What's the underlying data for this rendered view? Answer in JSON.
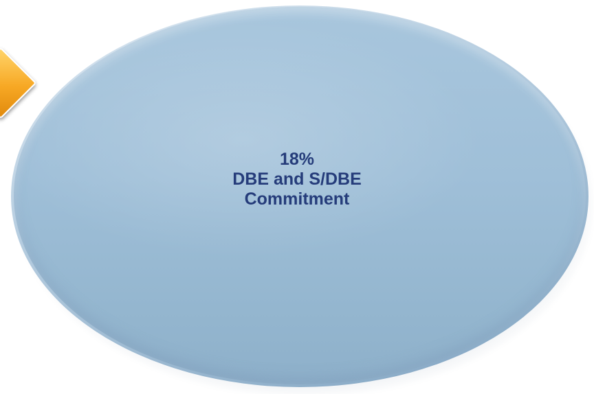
{
  "diagram": {
    "percentage": "18%",
    "line2": "DBE and S/DBE",
    "line3": "Commitment"
  },
  "colors": {
    "oval_fill": "#9fbfd8",
    "oval_rim": "#dfeaf3",
    "text": "#253c7a",
    "arrow": "#f7a824"
  }
}
